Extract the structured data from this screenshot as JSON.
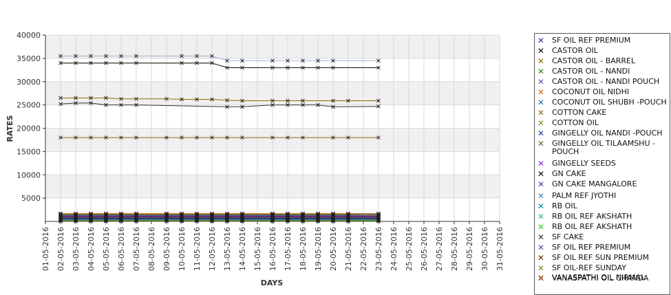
{
  "chart_data": {
    "type": "line",
    "xlabel": "DAYS",
    "ylabel": "RATES",
    "ylim": [
      0,
      40000
    ],
    "yticks": [
      5000,
      10000,
      15000,
      20000,
      25000,
      30000,
      35000,
      40000
    ],
    "grid": true,
    "legend_position": "right",
    "categories": [
      "01-05-2016",
      "02-05-2016",
      "03-05-2016",
      "04-05-2016",
      "05-05-2016",
      "06-05-2016",
      "07-05-2016",
      "08-05-2016",
      "09-05-2016",
      "10-05-2016",
      "11-05-2016",
      "12-05-2016",
      "13-05-2016",
      "14-05-2016",
      "15-05-2016",
      "16-05-2016",
      "17-05-2016",
      "18-05-2016",
      "19-05-2016",
      "20-05-2016",
      "21-05-2016",
      "22-05-2016",
      "23-05-2016",
      "24-05-2016",
      "25-05-2016",
      "26-05-2016",
      "27-05-2016",
      "28-05-2016",
      "29-05-2016",
      "30-05-2016",
      "31-05-2016"
    ],
    "series": [
      {
        "name": " SF OIL REF PREMIUM",
        "color": "#1f3f8f",
        "values": [
          null,
          1600,
          1600,
          1600,
          1600,
          1600,
          1600,
          null,
          1600,
          1600,
          1600,
          1600,
          1600,
          1600,
          null,
          1600,
          1600,
          1600,
          1600,
          1600,
          1600,
          null,
          1600,
          null,
          null,
          null,
          null,
          null,
          null,
          null,
          null
        ]
      },
      {
        "name": "CASTOR OIL",
        "color": "#000000",
        "values": [
          null,
          34000,
          34000,
          34000,
          34000,
          34000,
          34000,
          null,
          null,
          34000,
          34000,
          34000,
          33000,
          33000,
          null,
          33000,
          33000,
          33000,
          33000,
          33000,
          null,
          null,
          33000,
          null,
          null,
          null,
          null,
          null,
          null,
          null,
          null
        ]
      },
      {
        "name": "CASTOR OIL - BARREL",
        "color": "#8a6d00",
        "values": [
          null,
          26500,
          26500,
          26500,
          26500,
          26300,
          26300,
          null,
          26300,
          26200,
          26200,
          26200,
          26000,
          25900,
          null,
          25900,
          25900,
          25900,
          null,
          25900,
          25900,
          null,
          25900,
          null,
          null,
          null,
          null,
          null,
          null,
          null,
          null
        ]
      },
      {
        "name": "CASTOR OIL - NANDI",
        "color": "#2a7d2a",
        "values": [
          null,
          1400,
          1400,
          1400,
          1400,
          1400,
          1400,
          null,
          1400,
          1400,
          1400,
          1400,
          1400,
          1400,
          null,
          1400,
          1400,
          1400,
          1400,
          1400,
          1400,
          null,
          1400,
          null,
          null,
          null,
          null,
          null,
          null,
          null,
          null
        ]
      },
      {
        "name": "CASTOR OIL - NANDI POUCH",
        "color": "#5555aa",
        "values": [
          null,
          1300,
          1300,
          1300,
          1300,
          1300,
          1300,
          null,
          1300,
          1300,
          1300,
          1300,
          1300,
          1300,
          null,
          1300,
          1300,
          1300,
          1300,
          1300,
          1300,
          null,
          1300,
          null,
          null,
          null,
          null,
          null,
          null,
          null,
          null
        ]
      },
      {
        "name": "COCONUT OIL NIDHI",
        "color": "#d2691e",
        "values": [
          null,
          1500,
          1500,
          1500,
          1500,
          1500,
          1500,
          null,
          1500,
          1500,
          1500,
          1500,
          1500,
          1500,
          null,
          1500,
          1500,
          1500,
          1500,
          1500,
          1500,
          null,
          1300,
          null,
          null,
          null,
          null,
          null,
          null,
          null,
          null
        ]
      },
      {
        "name": "COCONUT OIL SHUBH -POUCH",
        "color": "#2e6ea6",
        "values": [
          null,
          1200,
          1200,
          1200,
          1200,
          1200,
          1200,
          null,
          1200,
          1200,
          1200,
          1200,
          1200,
          1200,
          null,
          1200,
          1200,
          1200,
          1200,
          1200,
          1200,
          null,
          1200,
          null,
          null,
          null,
          null,
          null,
          null,
          null,
          null
        ]
      },
      {
        "name": "COTTON CAKE",
        "color": "#8b6914",
        "values": [
          null,
          18000,
          18000,
          18000,
          18000,
          18000,
          18000,
          null,
          18000,
          18000,
          18000,
          18000,
          18000,
          18000,
          null,
          18000,
          18000,
          18000,
          null,
          18000,
          18000,
          null,
          18000,
          null,
          null,
          null,
          null,
          null,
          null,
          null,
          null
        ]
      },
      {
        "name": "COTTON OIL",
        "color": "#6b8e23",
        "values": [
          null,
          1000,
          1000,
          1000,
          1000,
          1000,
          1000,
          null,
          1000,
          1000,
          1000,
          1000,
          1000,
          1000,
          null,
          1000,
          1000,
          1000,
          1000,
          1000,
          1000,
          null,
          1000,
          null,
          null,
          null,
          null,
          null,
          null,
          null,
          null
        ]
      },
      {
        "name": "GINGELLY OIL NANDI -POUCH",
        "color": "#1a3a8a",
        "values": [
          null,
          900,
          900,
          900,
          900,
          900,
          900,
          null,
          900,
          900,
          900,
          900,
          900,
          900,
          null,
          900,
          900,
          900,
          900,
          900,
          900,
          null,
          900,
          null,
          null,
          null,
          null,
          null,
          null,
          null,
          null
        ]
      },
      {
        "name": "GINGELLY OIL TILAAMSHU -POUCH",
        "color": "#556b2f",
        "values": [
          null,
          800,
          800,
          800,
          800,
          800,
          800,
          null,
          800,
          800,
          800,
          800,
          800,
          800,
          null,
          800,
          800,
          800,
          800,
          800,
          800,
          null,
          800,
          null,
          null,
          null,
          null,
          null,
          null,
          null,
          null
        ]
      },
      {
        "name": "GINGELLY SEEDS",
        "color": "#8a2be2",
        "values": [
          null,
          700,
          700,
          700,
          700,
          700,
          700,
          null,
          700,
          700,
          700,
          700,
          700,
          700,
          null,
          700,
          700,
          700,
          700,
          700,
          700,
          null,
          700,
          null,
          null,
          null,
          null,
          null,
          null,
          null,
          null
        ]
      },
      {
        "name": "GN CAKE",
        "color": "#000000",
        "values": [
          null,
          600,
          600,
          600,
          600,
          600,
          600,
          null,
          600,
          600,
          600,
          600,
          600,
          600,
          null,
          600,
          600,
          600,
          600,
          600,
          600,
          null,
          600,
          null,
          null,
          null,
          null,
          null,
          null,
          null,
          null
        ]
      },
      {
        "name": "GN CAKE MANGALORE",
        "color": "#2e4a8a",
        "values": [
          null,
          500,
          500,
          500,
          500,
          500,
          500,
          null,
          500,
          500,
          500,
          500,
          500,
          500,
          null,
          500,
          500,
          500,
          500,
          500,
          500,
          null,
          500,
          null,
          null,
          null,
          null,
          null,
          null,
          null,
          null
        ]
      },
      {
        "name": "PALM REF JYOTHI",
        "color": "#4682b4",
        "values": [
          null,
          400,
          400,
          400,
          400,
          400,
          400,
          null,
          400,
          400,
          400,
          400,
          400,
          400,
          null,
          400,
          400,
          400,
          400,
          400,
          400,
          null,
          400,
          null,
          null,
          null,
          null,
          null,
          null,
          null,
          null
        ]
      },
      {
        "name": "RB OIL",
        "color": "#008b8b",
        "values": [
          null,
          300,
          300,
          300,
          300,
          300,
          300,
          null,
          300,
          300,
          300,
          300,
          300,
          300,
          null,
          300,
          300,
          300,
          300,
          300,
          300,
          null,
          300,
          null,
          null,
          null,
          null,
          null,
          null,
          null,
          null
        ]
      },
      {
        "name": "RB OIL REF  AKSHATH",
        "color": "#3cb371",
        "values": [
          null,
          250,
          250,
          250,
          250,
          250,
          250,
          null,
          250,
          250,
          250,
          250,
          250,
          250,
          null,
          250,
          250,
          250,
          250,
          250,
          250,
          null,
          250,
          null,
          null,
          null,
          null,
          null,
          null,
          null,
          null
        ]
      },
      {
        "name": "RB OIL REF AKSHATH",
        "color": "#32cd32",
        "values": [
          null,
          200,
          200,
          200,
          200,
          200,
          200,
          null,
          200,
          200,
          200,
          200,
          200,
          200,
          null,
          200,
          200,
          200,
          200,
          200,
          200,
          null,
          200,
          null,
          null,
          null,
          null,
          null,
          null,
          null,
          null
        ]
      },
      {
        "name": "SF CAKE",
        "color": "#333333",
        "values": [
          null,
          25200,
          25400,
          25400,
          25000,
          25000,
          25000,
          null,
          null,
          null,
          null,
          null,
          24600,
          24600,
          null,
          25000,
          25000,
          25000,
          25000,
          24600,
          null,
          null,
          24700,
          null,
          null,
          null,
          null,
          null,
          null,
          null,
          null
        ]
      },
      {
        "name": "SF OIL REF PREMIUM",
        "color": "#6a3d9a",
        "values": [
          null,
          150,
          150,
          150,
          150,
          150,
          150,
          null,
          150,
          150,
          150,
          150,
          150,
          150,
          null,
          150,
          150,
          150,
          150,
          150,
          150,
          null,
          150,
          null,
          null,
          null,
          null,
          null,
          null,
          null,
          null
        ]
      },
      {
        "name": "SF OIL REF SUN PREMIUM",
        "color": "#5a2d0c",
        "values": [
          null,
          100,
          100,
          100,
          100,
          100,
          100,
          null,
          100,
          100,
          100,
          100,
          100,
          100,
          null,
          100,
          100,
          100,
          100,
          100,
          100,
          null,
          100,
          null,
          null,
          null,
          null,
          null,
          null,
          null,
          null
        ]
      },
      {
        "name": "SF OIL-REF SUNDAY",
        "color": "#6b8e23",
        "values": [
          null,
          50,
          50,
          50,
          50,
          50,
          50,
          null,
          50,
          50,
          50,
          50,
          50,
          50,
          null,
          50,
          50,
          50,
          50,
          50,
          50,
          null,
          50,
          null,
          null,
          null,
          null,
          null,
          null,
          null,
          null
        ]
      },
      {
        "name": "VANASPATHI OIL CHANDA",
        "color": "#8b008b",
        "values": [
          null,
          1100,
          1100,
          1100,
          1100,
          1100,
          1100,
          null,
          1100,
          1100,
          1100,
          1100,
          1100,
          1100,
          null,
          1100,
          1100,
          1100,
          1100,
          1100,
          1100,
          null,
          1100,
          null,
          null,
          null,
          null,
          null,
          null,
          null,
          null
        ]
      },
      {
        "name": "VANASPATHI OIL NIRMAL",
        "color": "#b8860b",
        "values": [
          null,
          1700,
          1700,
          1700,
          1700,
          1700,
          1700,
          null,
          1700,
          1700,
          1700,
          1700,
          1700,
          1700,
          null,
          1700,
          1700,
          1700,
          1700,
          1700,
          1700,
          null,
          1700,
          null,
          null,
          null,
          null,
          null,
          null,
          null,
          null
        ]
      },
      {
        "name": "",
        "color": "#9ab3d5",
        "values": [
          null,
          35500,
          35500,
          35500,
          35500,
          35500,
          35500,
          null,
          null,
          35500,
          35500,
          35500,
          34500,
          34500,
          null,
          34500,
          34500,
          34500,
          34500,
          34500,
          null,
          null,
          34500,
          null,
          null,
          null,
          null,
          null,
          null,
          null,
          null
        ]
      }
    ]
  }
}
